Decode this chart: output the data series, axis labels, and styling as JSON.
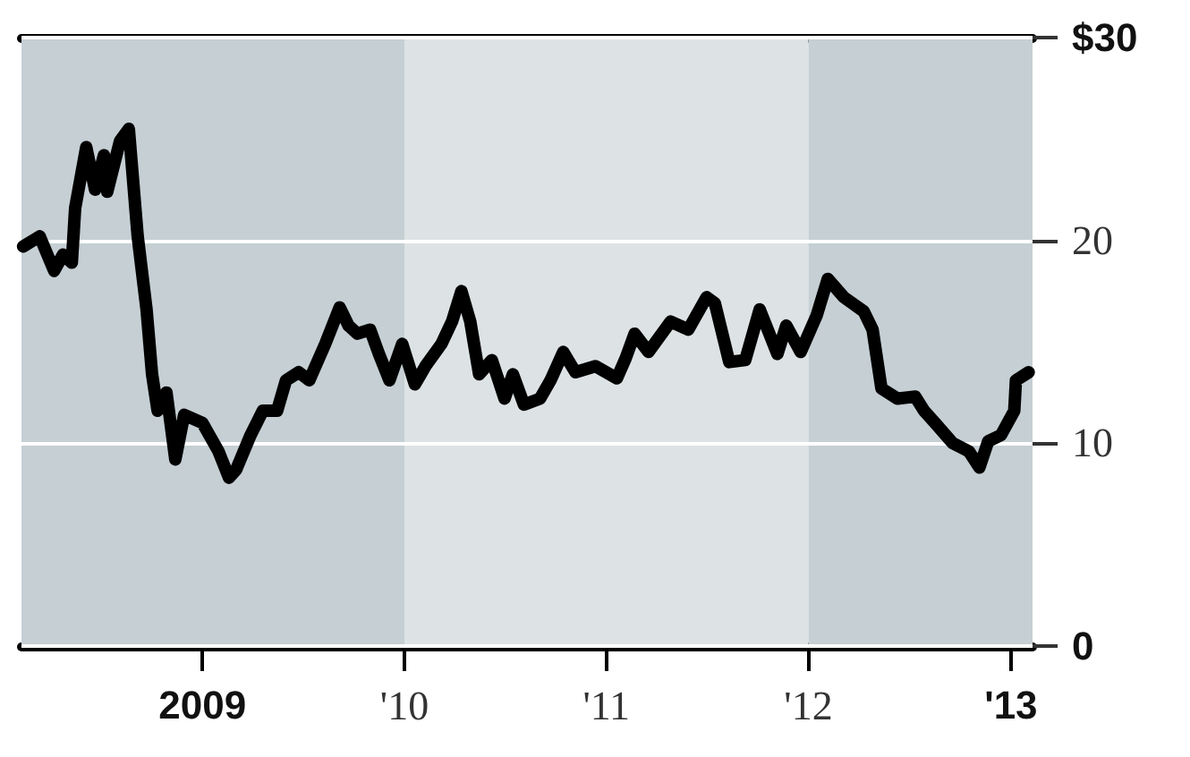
{
  "chart_data": {
    "type": "line",
    "x": [
      "2008-02-12",
      "2008-03-13",
      "2008-04-08",
      "2008-04-24",
      "2008-05-10",
      "2008-05-16",
      "2008-06-05",
      "2008-06-21",
      "2008-07-07",
      "2008-07-13",
      "2008-08-05",
      "2008-08-21",
      "2008-09-06",
      "2008-09-22",
      "2008-10-02",
      "2008-10-12",
      "2008-10-28",
      "2008-11-13",
      "2008-11-29",
      "2009-01-01",
      "2009-01-30",
      "2009-02-18",
      "2009-03-03",
      "2009-03-29",
      "2009-04-20",
      "2009-05-16",
      "2009-06-01",
      "2009-06-24",
      "2009-07-13",
      "2009-08-11",
      "2009-09-06",
      "2009-09-22",
      "2009-10-08",
      "2009-10-31",
      "2009-11-16",
      "2009-12-05",
      "2009-12-28",
      "2010-01-20",
      "2010-02-08",
      "2010-03-09",
      "2010-03-28",
      "2010-04-14",
      "2010-04-30",
      "2010-05-16",
      "2010-06-08",
      "2010-07-01",
      "2010-07-16",
      "2010-08-05",
      "2010-09-03",
      "2010-09-22",
      "2010-10-15",
      "2010-11-06",
      "2010-12-12",
      "2011-01-20",
      "2011-02-05",
      "2011-02-21",
      "2011-03-18",
      "2011-04-27",
      "2011-05-29",
      "2011-07-01",
      "2011-07-16",
      "2011-08-11",
      "2011-09-09",
      "2011-10-05",
      "2011-11-06",
      "2011-11-22",
      "2011-12-18",
      "2012-01-16",
      "2012-02-05",
      "2012-03-05",
      "2012-04-10",
      "2012-04-26",
      "2012-05-12",
      "2012-06-10",
      "2012-07-12",
      "2012-07-28",
      "2012-08-17",
      "2012-09-18",
      "2012-10-17",
      "2012-11-05",
      "2012-11-21",
      "2012-12-14",
      "2013-01-07",
      "2013-01-10",
      "2013-02-02"
    ],
    "series": [
      {
        "color": "#000000",
        "values": [
          19.7,
          20.2,
          18.5,
          19.3,
          18.9,
          21.6,
          24.6,
          22.5,
          24.2,
          22.4,
          24.9,
          25.5,
          20.2,
          16.6,
          13.4,
          11.6,
          12.5,
          9.2,
          11.4,
          11.0,
          9.6,
          8.3,
          8.7,
          10.4,
          11.6,
          11.6,
          13.1,
          13.5,
          13.1,
          14.9,
          16.7,
          15.8,
          15.4,
          15.6,
          14.4,
          13.1,
          14.9,
          12.9,
          13.8,
          14.9,
          16.0,
          17.5,
          16.0,
          13.4,
          14.1,
          12.2,
          13.4,
          11.9,
          12.2,
          13.1,
          14.5,
          13.5,
          13.8,
          13.2,
          14.2,
          15.4,
          14.5,
          16.0,
          15.6,
          17.2,
          16.9,
          14.0,
          14.1,
          16.6,
          14.4,
          15.8,
          14.5,
          16.3,
          18.1,
          17.2,
          16.5,
          15.6,
          12.7,
          12.2,
          12.3,
          11.6,
          11.0,
          10.0,
          9.6,
          8.8,
          10.1,
          10.4,
          11.6,
          13.1,
          13.5
        ]
      }
    ],
    "xlim": [
      "2008-02-09",
      "2013-02-09"
    ],
    "xticks": [
      {
        "value": "2009-01-01",
        "label": "2009"
      },
      {
        "value": "2010-01-01",
        "label": "'10"
      },
      {
        "value": "2011-01-01",
        "label": "'11"
      },
      {
        "value": "2012-01-01",
        "label": "'12"
      },
      {
        "value": "2013-01-01",
        "label": "'13"
      }
    ],
    "ylim": [
      0,
      30
    ],
    "yticks": [
      0,
      10,
      20,
      {
        "value": 30,
        "label": "$30"
      }
    ],
    "bands": [
      {
        "axis": "x",
        "from": "2008-02-09",
        "to": "2010-01-01",
        "color": "#c5cfd4"
      },
      {
        "axis": "x",
        "from": "2010-01-01",
        "to": "2012-01-01",
        "color": "#dde3e5"
      },
      {
        "axis": "x",
        "from": "2012-01-01",
        "to": "2013-02-09",
        "color": "#c5cfd4"
      }
    ],
    "grid": "y",
    "line_style": "solid"
  }
}
